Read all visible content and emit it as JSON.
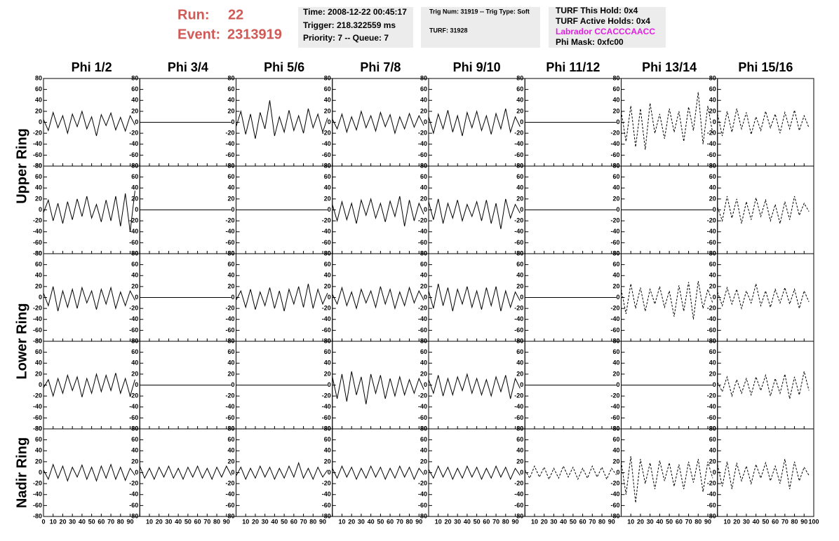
{
  "header": {
    "run_label": "Run:",
    "run": "22",
    "event_label": "Event:",
    "event": "2313919"
  },
  "info_boxes": [
    [
      "Time: 2008-12-22 00:45:17",
      "Trigger: 218.322559 ms",
      "Priority: 7 -- Queue: 7"
    ],
    [
      "Trig Num: 31919 -- Trig Type: Soft",
      "TURF: 31928"
    ],
    [
      "TURF This Hold: 0x4",
      "TURF Active Holds: 0x4",
      "Labrador CCACCCAACC",
      "Phi Mask: 0xfc00"
    ]
  ],
  "chart_data": {
    "type": "line",
    "columns": [
      "Phi 1/2",
      "Phi 3/4",
      "Phi 5/6",
      "Phi 7/8",
      "Phi 9/10",
      "Phi 11/12",
      "Phi 13/14",
      "Phi 15/16"
    ],
    "row_labels": [
      "Upper Ring",
      "Lower Ring",
      "Nadir Ring"
    ],
    "color": "#000000",
    "ylim": [
      -80,
      80
    ],
    "yticks": [
      -80,
      -60,
      -40,
      -20,
      0,
      20,
      40,
      60,
      80
    ],
    "xlim": [
      0,
      100
    ],
    "xticks": [
      0,
      10,
      20,
      30,
      40,
      50,
      60,
      70,
      80,
      90,
      100
    ],
    "x": [
      0,
      5,
      10,
      15,
      20,
      25,
      30,
      35,
      40,
      45,
      50,
      55,
      60,
      65,
      70,
      75,
      80,
      85,
      90,
      95
    ],
    "panels": [
      [
        {
          "style": "solid",
          "values": [
            5,
            -15,
            18,
            -10,
            12,
            -20,
            15,
            -8,
            20,
            -12,
            10,
            -25,
            14,
            -6,
            17,
            -14,
            9,
            -16,
            12,
            -5
          ]
        },
        {
          "style": "solid",
          "values": [
            0,
            0,
            0,
            0,
            0,
            0,
            0,
            0,
            0,
            0,
            0,
            0,
            0,
            0,
            0,
            0,
            0,
            0,
            0,
            0
          ]
        },
        {
          "style": "solid",
          "values": [
            -8,
            20,
            -22,
            15,
            -30,
            18,
            -12,
            40,
            -25,
            10,
            -18,
            22,
            -15,
            12,
            -20,
            25,
            -10,
            15,
            -18,
            8
          ]
        },
        {
          "style": "solid",
          "values": [
            6,
            -12,
            15,
            -18,
            10,
            -14,
            20,
            -10,
            12,
            -16,
            18,
            -8,
            14,
            -20,
            10,
            -12,
            16,
            -9,
            12,
            -6
          ]
        },
        {
          "style": "solid",
          "values": [
            10,
            -20,
            15,
            -12,
            22,
            -18,
            12,
            -25,
            18,
            -10,
            20,
            -15,
            12,
            -22,
            16,
            -12,
            25,
            -18,
            10,
            -8
          ]
        },
        {
          "style": "solid",
          "values": [
            0,
            0,
            0,
            0,
            0,
            0,
            0,
            0,
            0,
            0,
            0,
            0,
            0,
            0,
            0,
            0,
            0,
            0,
            0,
            0
          ]
        },
        {
          "style": "dashed",
          "values": [
            20,
            -35,
            30,
            -45,
            25,
            -50,
            35,
            -20,
            15,
            -30,
            25,
            -18,
            20,
            -35,
            28,
            -15,
            55,
            -40,
            30,
            -20
          ]
        },
        {
          "style": "dashed",
          "values": [
            15,
            -25,
            20,
            -18,
            25,
            -12,
            18,
            -22,
            10,
            -15,
            20,
            -10,
            15,
            -20,
            18,
            -12,
            22,
            -15,
            12,
            -10
          ]
        }
      ],
      [
        {
          "style": "solid",
          "values": [
            -5,
            18,
            -20,
            12,
            -25,
            15,
            -18,
            20,
            -12,
            25,
            -15,
            10,
            -22,
            18,
            -20,
            25,
            -30,
            30,
            -40,
            35
          ]
        },
        {
          "style": "solid",
          "values": [
            0,
            0,
            0,
            0,
            0,
            0,
            0,
            0,
            0,
            0,
            0,
            0,
            0,
            0,
            0,
            0,
            0,
            0,
            0,
            0
          ]
        },
        {
          "style": "solid",
          "values": [
            0,
            0,
            0,
            0,
            0,
            0,
            0,
            0,
            0,
            0,
            0,
            0,
            0,
            0,
            0,
            0,
            0,
            0,
            0,
            0
          ]
        },
        {
          "style": "solid",
          "values": [
            10,
            -20,
            15,
            -18,
            12,
            -25,
            18,
            -10,
            20,
            -15,
            12,
            -22,
            16,
            -12,
            25,
            -30,
            18,
            -20,
            12,
            -8
          ]
        },
        {
          "style": "solid",
          "values": [
            15,
            -18,
            20,
            -25,
            12,
            -15,
            18,
            -20,
            10,
            -12,
            15,
            -20,
            18,
            -25,
            12,
            -35,
            20,
            -15,
            10,
            -6
          ]
        },
        {
          "style": "solid",
          "values": [
            0,
            0,
            0,
            0,
            0,
            0,
            0,
            0,
            0,
            0,
            0,
            0,
            0,
            0,
            0,
            0,
            0,
            0,
            0,
            0
          ]
        },
        {
          "style": "solid",
          "values": [
            0,
            0,
            0,
            0,
            0,
            0,
            0,
            0,
            0,
            0,
            0,
            0,
            0,
            0,
            0,
            0,
            0,
            0,
            0,
            0
          ]
        },
        {
          "style": "dashed",
          "values": [
            5,
            -20,
            25,
            -15,
            20,
            -25,
            15,
            -18,
            22,
            -12,
            18,
            -20,
            10,
            -25,
            15,
            -18,
            25,
            -10,
            12,
            -3
          ]
        }
      ],
      [
        {
          "style": "solid",
          "values": [
            8,
            -15,
            20,
            -25,
            12,
            -18,
            15,
            -20,
            18,
            -10,
            12,
            -22,
            15,
            -12,
            18,
            -20,
            10,
            -15,
            12,
            -5
          ]
        },
        {
          "style": "solid",
          "values": [
            0,
            0,
            0,
            0,
            0,
            0,
            0,
            0,
            0,
            0,
            0,
            0,
            0,
            0,
            0,
            0,
            0,
            0,
            0,
            0
          ]
        },
        {
          "style": "solid",
          "values": [
            -5,
            12,
            -18,
            15,
            -22,
            10,
            -15,
            18,
            -20,
            12,
            -25,
            15,
            -12,
            20,
            -18,
            25,
            -20,
            15,
            -12,
            8
          ]
        },
        {
          "style": "solid",
          "values": [
            6,
            -12,
            18,
            -15,
            10,
            -20,
            15,
            -10,
            12,
            -18,
            20,
            -12,
            15,
            -20,
            10,
            -15,
            18,
            -10,
            12,
            -5
          ]
        },
        {
          "style": "solid",
          "values": [
            12,
            -20,
            25,
            -15,
            18,
            -25,
            15,
            -12,
            20,
            -18,
            12,
            -22,
            18,
            -15,
            20,
            -25,
            12,
            -18,
            10,
            -6
          ]
        },
        {
          "style": "solid",
          "values": [
            0,
            0,
            0,
            0,
            0,
            0,
            0,
            0,
            0,
            0,
            0,
            0,
            0,
            0,
            0,
            0,
            0,
            0,
            0,
            0
          ]
        },
        {
          "style": "dashed",
          "values": [
            15,
            -30,
            25,
            -20,
            18,
            -25,
            15,
            -12,
            20,
            -18,
            12,
            -35,
            22,
            -25,
            28,
            -40,
            30,
            -20,
            15,
            -10
          ]
        },
        {
          "style": "dashed",
          "values": [
            10,
            -15,
            18,
            -12,
            15,
            -20,
            12,
            -10,
            25,
            -15,
            12,
            -18,
            15,
            -10,
            18,
            -12,
            15,
            -20,
            12,
            -8
          ]
        }
      ],
      [
        {
          "style": "solid",
          "values": [
            -5,
            10,
            -20,
            12,
            -15,
            18,
            -10,
            15,
            -22,
            12,
            -15,
            20,
            -12,
            18,
            -10,
            22,
            -15,
            12,
            -20,
            10
          ]
        },
        {
          "style": "solid",
          "values": [
            0,
            0,
            0,
            0,
            0,
            0,
            0,
            0,
            0,
            0,
            0,
            0,
            0,
            0,
            0,
            0,
            0,
            0,
            0,
            0
          ]
        },
        {
          "style": "solid",
          "values": [
            0,
            0,
            0,
            0,
            0,
            0,
            0,
            0,
            0,
            0,
            0,
            0,
            0,
            0,
            0,
            0,
            0,
            0,
            0,
            0
          ]
        },
        {
          "style": "solid",
          "values": [
            15,
            -25,
            20,
            -30,
            25,
            -18,
            15,
            -35,
            20,
            -15,
            18,
            -25,
            12,
            -20,
            15,
            -18,
            10,
            -15,
            12,
            -8
          ]
        },
        {
          "style": "solid",
          "values": [
            10,
            -15,
            18,
            -20,
            12,
            -18,
            15,
            -10,
            20,
            -15,
            12,
            -18,
            10,
            -20,
            15,
            -12,
            18,
            -25,
            12,
            -6
          ]
        },
        {
          "style": "solid",
          "values": [
            0,
            0,
            0,
            0,
            0,
            0,
            0,
            0,
            0,
            0,
            0,
            0,
            0,
            0,
            0,
            0,
            0,
            0,
            0,
            0
          ]
        },
        {
          "style": "solid",
          "values": [
            0,
            0,
            0,
            0,
            0,
            0,
            0,
            0,
            0,
            0,
            0,
            0,
            0,
            0,
            0,
            0,
            0,
            0,
            0,
            0
          ]
        },
        {
          "style": "dashed",
          "values": [
            5,
            -12,
            15,
            -20,
            10,
            -15,
            12,
            -18,
            15,
            -10,
            18,
            -20,
            12,
            -15,
            20,
            -25,
            15,
            -18,
            25,
            -10
          ]
        }
      ],
      [
        {
          "style": "solid",
          "values": [
            5,
            -12,
            15,
            -10,
            12,
            -15,
            10,
            -8,
            14,
            -12,
            10,
            -15,
            12,
            -10,
            15,
            -12,
            10,
            -14,
            8,
            -5
          ]
        },
        {
          "style": "solid",
          "values": [
            12,
            -10,
            8,
            -12,
            10,
            -8,
            12,
            -10,
            8,
            -12,
            10,
            -8,
            12,
            -10,
            8,
            -12,
            10,
            -8,
            12,
            -5
          ]
        },
        {
          "style": "solid",
          "values": [
            -6,
            10,
            -12,
            8,
            -10,
            12,
            -8,
            10,
            -12,
            8,
            -10,
            12,
            -8,
            18,
            -10,
            8,
            -12,
            10,
            -8,
            5
          ]
        },
        {
          "style": "solid",
          "values": [
            8,
            -10,
            12,
            -8,
            10,
            -12,
            8,
            -10,
            12,
            -8,
            10,
            -12,
            8,
            -10,
            12,
            -8,
            10,
            -12,
            8,
            -4
          ]
        },
        {
          "style": "solid",
          "values": [
            6,
            -10,
            12,
            -8,
            10,
            -12,
            8,
            -10,
            12,
            -8,
            10,
            -12,
            8,
            -10,
            12,
            -8,
            10,
            -12,
            8,
            -5
          ]
        },
        {
          "style": "dashed",
          "values": [
            5,
            -10,
            12,
            -8,
            10,
            -12,
            8,
            -10,
            12,
            -8,
            10,
            -12,
            8,
            -10,
            12,
            -8,
            10,
            -12,
            8,
            -4
          ]
        },
        {
          "style": "dashed",
          "values": [
            20,
            -40,
            30,
            -55,
            25,
            -20,
            18,
            -30,
            22,
            -15,
            18,
            -25,
            15,
            -30,
            20,
            -18,
            25,
            -35,
            20,
            -10
          ]
        },
        {
          "style": "dashed",
          "values": [
            15,
            -25,
            20,
            -30,
            18,
            -15,
            12,
            -20,
            15,
            -10,
            18,
            -15,
            12,
            -20,
            25,
            -30,
            20,
            -15,
            10,
            -5
          ]
        }
      ]
    ]
  }
}
